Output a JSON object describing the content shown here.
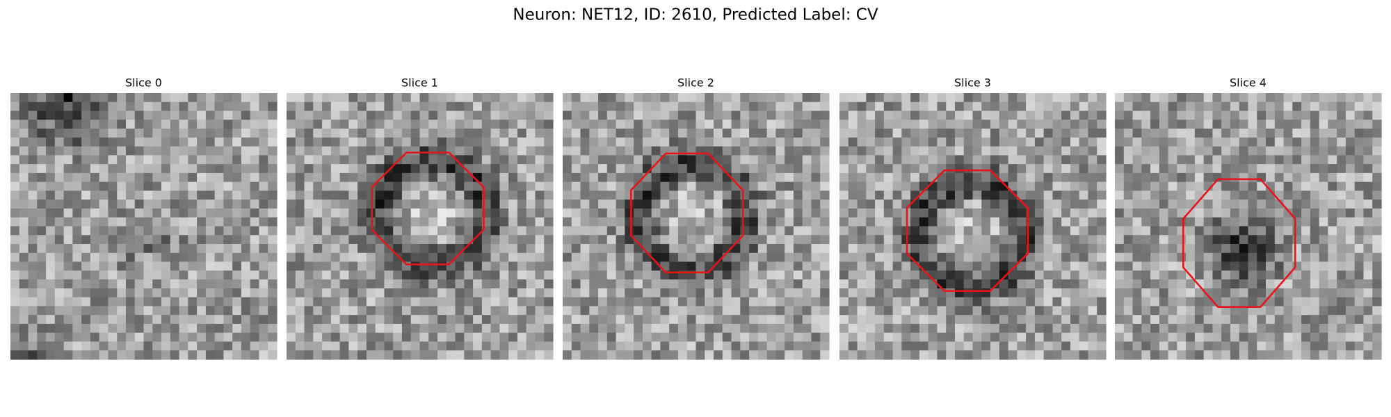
{
  "title": "Neuron: NET12, ID: 2610, Predicted Label: CV",
  "panels": [
    {
      "title": "Slice 0"
    },
    {
      "title": "Slice 1"
    },
    {
      "title": "Slice 2"
    },
    {
      "title": "Slice 3"
    },
    {
      "title": "Slice 4"
    }
  ]
}
